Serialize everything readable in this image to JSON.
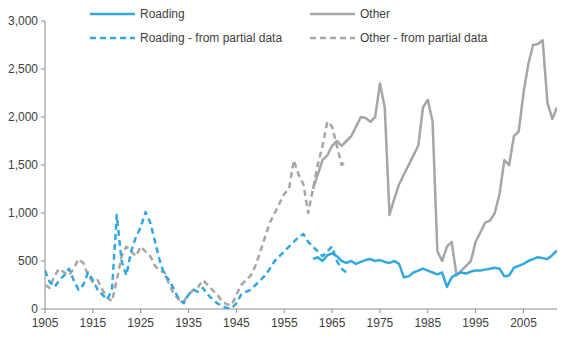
{
  "chart_data": {
    "type": "line",
    "x": [
      1905,
      1906,
      1907,
      1908,
      1909,
      1910,
      1911,
      1912,
      1913,
      1914,
      1915,
      1916,
      1917,
      1918,
      1919,
      1920,
      1921,
      1922,
      1923,
      1924,
      1925,
      1926,
      1927,
      1928,
      1929,
      1930,
      1931,
      1932,
      1933,
      1934,
      1935,
      1936,
      1937,
      1938,
      1939,
      1940,
      1941,
      1942,
      1943,
      1944,
      1945,
      1946,
      1947,
      1948,
      1949,
      1950,
      1951,
      1952,
      1953,
      1954,
      1955,
      1956,
      1957,
      1958,
      1959,
      1960,
      1961,
      1962,
      1963,
      1964,
      1965,
      1966,
      1967,
      1968,
      1969,
      1970,
      1971,
      1972,
      1973,
      1974,
      1975,
      1976,
      1977,
      1978,
      1979,
      1980,
      1981,
      1982,
      1983,
      1984,
      1985,
      1986,
      1987,
      1988,
      1989,
      1990,
      1991,
      1992,
      1993,
      1994,
      1995,
      1996,
      1997,
      1998,
      1999,
      2000,
      2001,
      2002,
      2003,
      2004,
      2005,
      2006,
      2007,
      2008,
      2009,
      2010,
      2011,
      2012
    ],
    "series": [
      {
        "name": "Roading",
        "color": "#33a8e0",
        "line_style": "solid",
        "values": [
          null,
          null,
          null,
          null,
          null,
          null,
          null,
          null,
          null,
          null,
          null,
          null,
          null,
          null,
          null,
          null,
          null,
          null,
          null,
          null,
          null,
          null,
          null,
          null,
          null,
          null,
          null,
          null,
          null,
          null,
          null,
          null,
          null,
          null,
          null,
          null,
          null,
          null,
          null,
          null,
          null,
          null,
          null,
          null,
          null,
          null,
          null,
          null,
          null,
          null,
          null,
          null,
          null,
          null,
          null,
          null,
          520,
          540,
          500,
          560,
          580,
          550,
          500,
          480,
          500,
          470,
          490,
          510,
          520,
          500,
          510,
          490,
          480,
          500,
          470,
          330,
          340,
          380,
          400,
          420,
          400,
          380,
          360,
          380,
          230,
          330,
          360,
          380,
          370,
          390,
          400,
          400,
          410,
          420,
          430,
          420,
          340,
          350,
          430,
          450,
          470,
          500,
          520,
          540,
          530,
          520,
          560,
          610
        ]
      },
      {
        "name": "Other",
        "color": "#a6a6a6",
        "line_style": "solid",
        "values": [
          null,
          null,
          null,
          null,
          null,
          null,
          null,
          null,
          null,
          null,
          null,
          null,
          null,
          null,
          null,
          null,
          null,
          null,
          null,
          null,
          null,
          null,
          null,
          null,
          null,
          null,
          null,
          null,
          null,
          null,
          null,
          null,
          null,
          null,
          null,
          null,
          null,
          null,
          null,
          null,
          null,
          null,
          null,
          null,
          null,
          null,
          null,
          null,
          null,
          null,
          null,
          null,
          null,
          null,
          null,
          null,
          1250,
          1400,
          1550,
          1600,
          1700,
          1750,
          1700,
          1750,
          1800,
          1900,
          2000,
          1990,
          1950,
          2000,
          2350,
          2100,
          980,
          1150,
          1300,
          1400,
          1500,
          1600,
          1700,
          2100,
          2180,
          1950,
          600,
          500,
          650,
          700,
          350,
          400,
          450,
          500,
          700,
          800,
          900,
          920,
          1000,
          1200,
          1550,
          1500,
          1800,
          1850,
          2250,
          2550,
          2750,
          2760,
          2800,
          2150,
          1980,
          2100
        ]
      },
      {
        "name": "Roading - from partial data",
        "color": "#33a8e0",
        "line_style": "dashed",
        "values": [
          400,
          280,
          230,
          300,
          350,
          420,
          300,
          200,
          250,
          380,
          300,
          200,
          150,
          100,
          200,
          980,
          500,
          350,
          600,
          750,
          850,
          1010,
          900,
          700,
          500,
          350,
          300,
          200,
          100,
          60,
          150,
          200,
          180,
          220,
          150,
          100,
          60,
          30,
          10,
          5,
          60,
          150,
          180,
          200,
          250,
          300,
          350,
          420,
          500,
          550,
          600,
          650,
          700,
          750,
          780,
          700,
          650,
          600,
          550,
          600,
          650,
          500,
          420,
          380,
          null,
          null,
          null,
          null,
          null,
          null,
          null,
          null,
          null,
          null,
          null,
          null,
          null,
          null,
          null,
          null,
          null,
          null,
          null,
          null,
          null,
          null,
          null,
          null,
          null,
          null,
          null,
          null,
          null,
          null,
          null,
          null,
          null,
          null,
          null,
          null,
          null,
          null,
          null,
          null,
          null,
          null,
          null,
          null
        ]
      },
      {
        "name": "Other - from partial data",
        "color": "#a6a6a6",
        "line_style": "dashed",
        "values": [
          250,
          220,
          350,
          420,
          380,
          350,
          420,
          520,
          480,
          350,
          280,
          300,
          200,
          120,
          80,
          300,
          550,
          650,
          600,
          550,
          650,
          600,
          550,
          450,
          400,
          380,
          250,
          150,
          100,
          80,
          150,
          200,
          230,
          300,
          250,
          200,
          150,
          80,
          50,
          40,
          150,
          250,
          300,
          350,
          450,
          600,
          750,
          900,
          1000,
          1100,
          1200,
          1250,
          1550,
          1400,
          1300,
          1000,
          1250,
          1500,
          1700,
          1950,
          1900,
          1700,
          1500,
          1550,
          null,
          null,
          null,
          null,
          null,
          null,
          null,
          null,
          null,
          null,
          null,
          null,
          null,
          null,
          null,
          null,
          null,
          null,
          null,
          null,
          null,
          null,
          null,
          null,
          null,
          null,
          null,
          null,
          null,
          null,
          null,
          null,
          null,
          null,
          null,
          null,
          null,
          null,
          null,
          null,
          null,
          null,
          null,
          null
        ]
      }
    ],
    "xlim": [
      1905,
      2012
    ],
    "xticks": [
      1905,
      1915,
      1925,
      1935,
      1945,
      1955,
      1965,
      1975,
      1985,
      1995,
      2005
    ],
    "ylim": [
      0,
      3000
    ],
    "yticks": [
      0,
      500,
      {
        "value": 1000,
        "label": "1,000"
      },
      {
        "value": 1500,
        "label": "1,500"
      },
      {
        "value": 2000,
        "label": "2,000"
      },
      {
        "value": 2500,
        "label": "2,500"
      },
      {
        "value": 3000,
        "label": "3,000"
      }
    ],
    "grid": false,
    "legend": "top"
  }
}
